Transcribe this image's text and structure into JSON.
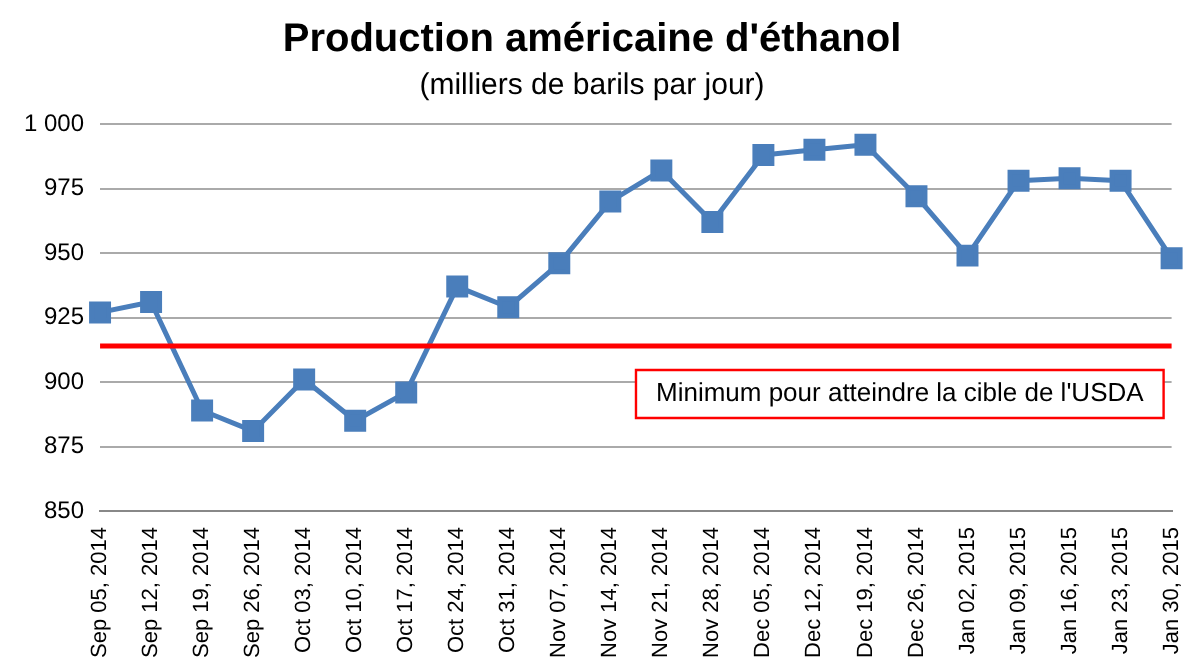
{
  "chart_data": {
    "type": "line",
    "title": "Production américaine d'éthanol",
    "subtitle": "(milliers de barils par jour)",
    "categories": [
      "Sep 05, 2014",
      "Sep 12, 2014",
      "Sep 19, 2014",
      "Sep 26, 2014",
      "Oct 03, 2014",
      "Oct 10, 2014",
      "Oct 17, 2014",
      "Oct 24, 2014",
      "Oct 31, 2014",
      "Nov 07, 2014",
      "Nov 14, 2014",
      "Nov 21, 2014",
      "Nov 28, 2014",
      "Dec 05, 2014",
      "Dec 12, 2014",
      "Dec 19, 2014",
      "Dec 26, 2014",
      "Jan 02, 2015",
      "Jan 09, 2015",
      "Jan 16, 2015",
      "Jan 23, 2015",
      "Jan 30, 2015"
    ],
    "series": [
      {
        "color": "#4a7ebb",
        "values": [
          927,
          931,
          889,
          881,
          901,
          885,
          896,
          937,
          929,
          946,
          970,
          982,
          962,
          988,
          990,
          992,
          972,
          949,
          978,
          979,
          978,
          948
        ]
      }
    ],
    "ylim": [
      850,
      1000
    ],
    "yticks": [
      850,
      875,
      900,
      925,
      950,
      975,
      {
        "value": 1000,
        "label": "1 000"
      }
    ],
    "grid": "y",
    "legend": false,
    "marker": "square",
    "line_style": "solid",
    "ref_lines": [
      {
        "axis": "y",
        "value": 914,
        "label": "Minimum pour atteindre la cible de l'USDA",
        "color": "#ff0000"
      }
    ]
  }
}
